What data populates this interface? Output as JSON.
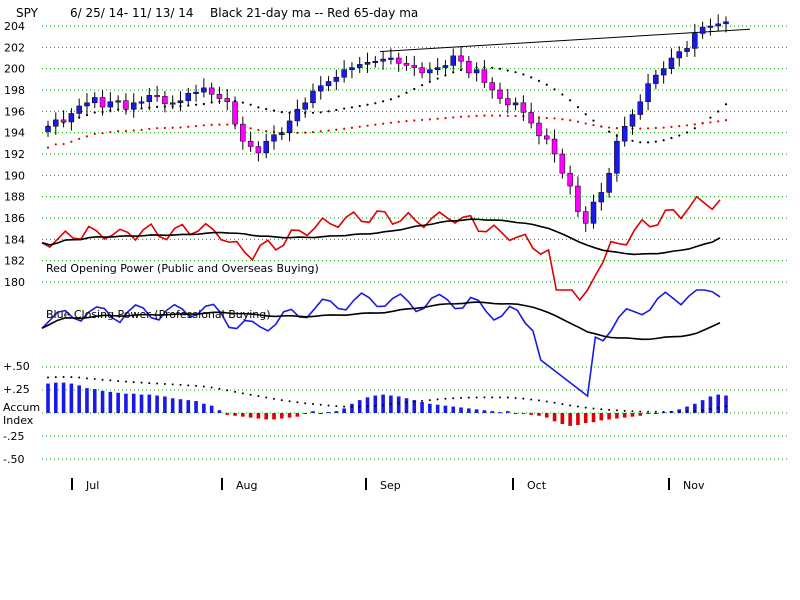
{
  "header": {
    "symbol": "SPY",
    "date_range": "6/ 25/ 14- 11/ 13/ 14",
    "legend_text": "Black 21-day ma --  Red 65-day ma"
  },
  "colors": {
    "up": "#1a1ae6",
    "down": "#ff00ff",
    "ma21": "#000000",
    "ma65": "#e00000",
    "grid": "#00aa00",
    "red_power": "#e00000",
    "blue_power": "#1a1ae6",
    "accum_pos": "#1a1ae6",
    "accum_neg": "#e00000"
  },
  "chart_data": {
    "type": "candlestick",
    "price_axis": {
      "ticks": [
        "204",
        "202",
        "200",
        "198",
        "196",
        "194",
        "192",
        "190",
        "188",
        "186",
        "184",
        "182",
        "180"
      ],
      "ylim": [
        179,
        205
      ]
    },
    "months": [
      "Jul",
      "Aug",
      "Sep",
      "Oct",
      "Nov"
    ],
    "ohlc_close": [
      194.6,
      195.2,
      195.0,
      195.8,
      196.5,
      196.8,
      197.3,
      196.4,
      196.9,
      197.0,
      196.2,
      196.8,
      196.9,
      197.5,
      197.4,
      196.7,
      196.8,
      197.0,
      197.7,
      197.8,
      198.2,
      197.6,
      197.2,
      196.9,
      194.8,
      193.2,
      192.7,
      192.1,
      193.2,
      193.8,
      194.0,
      195.1,
      196.2,
      196.8,
      197.9,
      198.4,
      198.8,
      199.2,
      199.9,
      200.1,
      200.4,
      200.6,
      200.7,
      200.9,
      201.0,
      200.5,
      200.3,
      200.1,
      199.6,
      199.9,
      200.1,
      200.3,
      201.2,
      200.7,
      199.6,
      199.9,
      198.7,
      198.0,
      197.2,
      196.6,
      196.8,
      195.9,
      194.9,
      193.7,
      193.4,
      192.0,
      190.2,
      189.0,
      186.6,
      185.5,
      187.5,
      188.4,
      190.2,
      193.2,
      194.6,
      195.7,
      196.9,
      198.6,
      199.4,
      200.0,
      201.0,
      201.6,
      201.9,
      203.3,
      203.9,
      204.0,
      204.2,
      204.4
    ],
    "accum_index": {
      "ticks": [
        "+.50",
        "+.25",
        "Accum",
        "Index",
        "-.25",
        "-.50"
      ],
      "values": [
        0.32,
        0.33,
        0.33,
        0.32,
        0.3,
        0.27,
        0.26,
        0.24,
        0.23,
        0.22,
        0.21,
        0.21,
        0.2,
        0.2,
        0.19,
        0.18,
        0.16,
        0.15,
        0.14,
        0.13,
        0.1,
        0.08,
        0.03,
        -0.02,
        -0.03,
        -0.04,
        -0.05,
        -0.06,
        -0.07,
        -0.07,
        -0.06,
        -0.05,
        -0.04,
        0.0,
        0.02,
        0.0,
        0.01,
        0.02,
        0.05,
        0.1,
        0.14,
        0.17,
        0.19,
        0.2,
        0.19,
        0.18,
        0.16,
        0.14,
        0.12,
        0.1,
        0.09,
        0.08,
        0.07,
        0.06,
        0.05,
        0.04,
        0.03,
        0.02,
        0.01,
        0.02,
        0.0,
        -0.01,
        -0.02,
        -0.03,
        -0.05,
        -0.09,
        -0.12,
        -0.14,
        -0.13,
        -0.11,
        -0.1,
        -0.08,
        -0.07,
        -0.06,
        -0.05,
        -0.04,
        -0.03,
        -0.01,
        0.0,
        0.01,
        0.02,
        0.04,
        0.07,
        0.1,
        0.14,
        0.18,
        0.2,
        0.19
      ]
    },
    "text_labels": {
      "red_power": "Red Opening Power (Public and Overseas Buying)",
      "blue_power": "Blue Closing Power (Professional Buying)"
    }
  }
}
